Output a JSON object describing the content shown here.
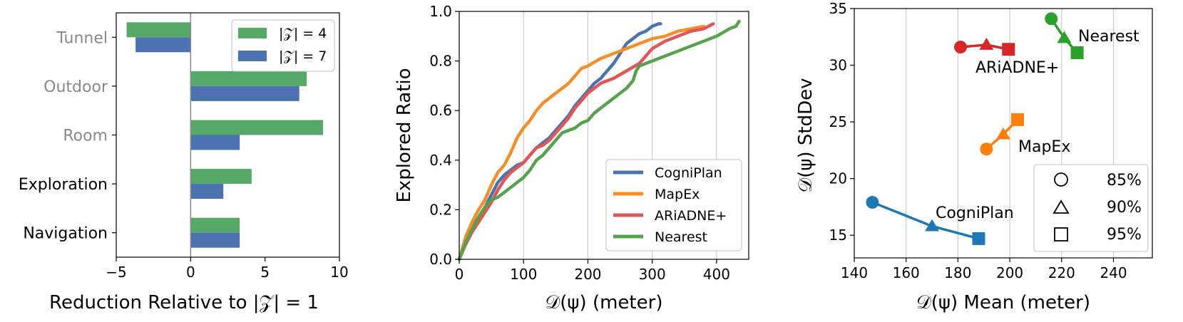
{
  "chart_data": [
    {
      "type": "bar",
      "orientation": "horizontal",
      "categories": [
        "Tunnel",
        "Outdoor",
        "Room",
        "Exploration",
        "Navigation"
      ],
      "category_colors": [
        "#888888",
        "#888888",
        "#888888",
        "#000000",
        "#000000"
      ],
      "series": [
        {
          "name": "|𝒵| = 4",
          "color": "#55a868",
          "values": [
            -4.3,
            7.8,
            8.9,
            4.1,
            3.3
          ]
        },
        {
          "name": "|𝒵| = 7",
          "color": "#4c72b0",
          "values": [
            -3.7,
            7.3,
            3.3,
            2.2,
            3.3
          ]
        }
      ],
      "xlabel": "Reduction Relative to |𝒵| = 1",
      "xlim": [
        -5,
        10
      ],
      "xticks": [
        -5,
        0,
        5,
        10
      ],
      "xtick_labels": [
        "−5",
        "0",
        "5",
        "10"
      ],
      "legend": "top-right",
      "vline_at": 0
    },
    {
      "type": "line",
      "xlabel": "𝒟(ψ) (meter)",
      "ylabel": "Explored Ratio",
      "xlim": [
        0,
        450
      ],
      "ylim": [
        0,
        1
      ],
      "xticks": [
        0,
        100,
        200,
        300,
        400
      ],
      "yticks": [
        0.0,
        0.2,
        0.4,
        0.6,
        0.8,
        1.0
      ],
      "ytick_labels": [
        "0.0",
        "0.2",
        "0.4",
        "0.6",
        "0.8",
        "1.0"
      ],
      "grid": "vertical",
      "legend": "bottom-right",
      "series": [
        {
          "name": "CogniPlan",
          "color": "#4c72b0",
          "x": [
            0,
            10,
            20,
            30,
            40,
            50,
            60,
            70,
            80,
            90,
            100,
            110,
            120,
            130,
            140,
            150,
            160,
            170,
            180,
            190,
            200,
            210,
            220,
            230,
            240,
            250,
            260,
            270,
            280,
            290,
            300,
            310,
            313
          ],
          "y": [
            0,
            0.07,
            0.13,
            0.17,
            0.21,
            0.26,
            0.31,
            0.34,
            0.36,
            0.38,
            0.39,
            0.42,
            0.45,
            0.47,
            0.49,
            0.52,
            0.55,
            0.58,
            0.62,
            0.65,
            0.68,
            0.71,
            0.73,
            0.76,
            0.79,
            0.83,
            0.87,
            0.89,
            0.91,
            0.92,
            0.94,
            0.95,
            0.95
          ]
        },
        {
          "name": "MapEx",
          "color": "#f28e2b",
          "x": [
            0,
            10,
            20,
            30,
            40,
            50,
            60,
            70,
            80,
            90,
            100,
            110,
            120,
            130,
            140,
            150,
            160,
            170,
            180,
            190,
            200,
            220,
            240,
            260,
            280,
            300,
            320,
            340,
            360,
            380
          ],
          "y": [
            0,
            0.09,
            0.15,
            0.2,
            0.24,
            0.3,
            0.35,
            0.38,
            0.43,
            0.49,
            0.53,
            0.56,
            0.6,
            0.63,
            0.65,
            0.67,
            0.69,
            0.71,
            0.74,
            0.77,
            0.78,
            0.81,
            0.83,
            0.85,
            0.87,
            0.89,
            0.9,
            0.92,
            0.93,
            0.94
          ]
        },
        {
          "name": "ARiADNE+",
          "color": "#e15759",
          "x": [
            0,
            10,
            20,
            30,
            40,
            50,
            60,
            70,
            80,
            90,
            100,
            110,
            120,
            130,
            140,
            150,
            160,
            170,
            180,
            190,
            200,
            220,
            240,
            260,
            280,
            300,
            320,
            340,
            360,
            380,
            395
          ],
          "y": [
            0,
            0.06,
            0.11,
            0.15,
            0.19,
            0.23,
            0.28,
            0.32,
            0.35,
            0.37,
            0.39,
            0.42,
            0.45,
            0.46,
            0.48,
            0.51,
            0.54,
            0.57,
            0.61,
            0.64,
            0.67,
            0.71,
            0.73,
            0.76,
            0.79,
            0.85,
            0.88,
            0.9,
            0.92,
            0.93,
            0.95
          ]
        },
        {
          "name": "Nearest",
          "color": "#59a14f",
          "x": [
            0,
            10,
            20,
            30,
            40,
            50,
            60,
            70,
            80,
            90,
            100,
            110,
            120,
            130,
            140,
            150,
            160,
            170,
            180,
            190,
            200,
            210,
            220,
            240,
            260,
            270,
            275,
            280,
            300,
            320,
            340,
            360,
            380,
            400,
            420,
            430,
            435
          ],
          "y": [
            0,
            0.07,
            0.12,
            0.17,
            0.21,
            0.24,
            0.25,
            0.27,
            0.29,
            0.31,
            0.33,
            0.36,
            0.4,
            0.42,
            0.45,
            0.48,
            0.51,
            0.52,
            0.53,
            0.55,
            0.56,
            0.59,
            0.61,
            0.65,
            0.69,
            0.72,
            0.76,
            0.78,
            0.8,
            0.82,
            0.84,
            0.86,
            0.88,
            0.9,
            0.93,
            0.94,
            0.96
          ]
        }
      ]
    },
    {
      "type": "scatter",
      "xlabel": "𝒟(ψ) Mean (meter)",
      "ylabel": "𝒟(ψ) StdDev",
      "xlim": [
        140,
        255
      ],
      "ylim": [
        13,
        35
      ],
      "xticks": [
        140,
        160,
        180,
        200,
        220,
        240
      ],
      "yticks": [
        15,
        20,
        25,
        30,
        35
      ],
      "grid": "vertical",
      "legend": "bottom-right",
      "marker_legend": [
        {
          "marker": "circle",
          "label": "85%"
        },
        {
          "marker": "triangle",
          "label": "90%"
        },
        {
          "marker": "square",
          "label": "95%"
        }
      ],
      "series": [
        {
          "name": "CogniPlan",
          "color": "#1f77b4",
          "points": [
            [
              147,
              17.9
            ],
            [
              170,
              15.8
            ],
            [
              188,
              14.7
            ]
          ]
        },
        {
          "name": "MapEx",
          "color": "#ff7f0e",
          "points": [
            [
              191,
              22.6
            ],
            [
              197.5,
              23.9
            ],
            [
              203,
              25.2
            ]
          ]
        },
        {
          "name": "ARiADNE+",
          "color": "#d62728",
          "points": [
            [
              181,
              31.6
            ],
            [
              191,
              31.8
            ],
            [
              199.5,
              31.4
            ]
          ]
        },
        {
          "name": "Nearest",
          "color": "#2ca02c",
          "points": [
            [
              216,
              34.1
            ],
            [
              221,
              32.4
            ],
            [
              226,
              31.1
            ]
          ]
        }
      ],
      "annotations": [
        "Nearest",
        "ARiADNE+",
        "MapEx",
        "CogniPlan"
      ]
    }
  ]
}
